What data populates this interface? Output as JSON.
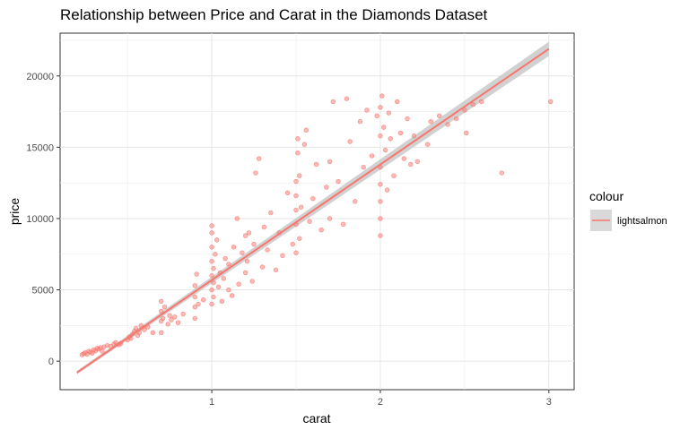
{
  "chart_data": {
    "type": "scatter",
    "title": "Relationship between Price and Carat in the Diamonds Dataset",
    "xlabel": "carat",
    "ylabel": "price",
    "xlim": [
      0.1,
      3.15
    ],
    "ylim": [
      -2000,
      23000
    ],
    "x_ticks": [
      1,
      2,
      3
    ],
    "x_tick_labels": [
      "1",
      "2",
      "3"
    ],
    "y_ticks": [
      0,
      5000,
      10000,
      15000,
      20000
    ],
    "y_tick_labels": [
      "0",
      "5000",
      "10000",
      "15000",
      "20000"
    ],
    "grid": true,
    "legend": {
      "title": "colour",
      "position": "right",
      "entries": [
        {
          "label": "lightsalmon",
          "color": "#f8766d"
        }
      ]
    },
    "point_color": "#f8766d",
    "band_color": "#cccccc",
    "fit": {
      "method": "linear",
      "x": [
        0.2,
        3.0
      ],
      "y": [
        -800,
        21900
      ],
      "band_halfwidth": [
        120,
        500
      ]
    },
    "points": [
      [
        0.23,
        450
      ],
      [
        0.24,
        520
      ],
      [
        0.25,
        600
      ],
      [
        0.26,
        480
      ],
      [
        0.27,
        700
      ],
      [
        0.28,
        650
      ],
      [
        0.29,
        560
      ],
      [
        0.3,
        800
      ],
      [
        0.31,
        720
      ],
      [
        0.32,
        900
      ],
      [
        0.33,
        850
      ],
      [
        0.34,
        950
      ],
      [
        0.35,
        700
      ],
      [
        0.36,
        1000
      ],
      [
        0.38,
        1100
      ],
      [
        0.4,
        1050
      ],
      [
        0.42,
        1200
      ],
      [
        0.43,
        1300
      ],
      [
        0.45,
        1150
      ],
      [
        0.46,
        1250
      ],
      [
        0.5,
        1500
      ],
      [
        0.51,
        1700
      ],
      [
        0.52,
        1600
      ],
      [
        0.53,
        1900
      ],
      [
        0.54,
        2100
      ],
      [
        0.55,
        2300
      ],
      [
        0.56,
        1800
      ],
      [
        0.57,
        2000
      ],
      [
        0.58,
        2500
      ],
      [
        0.6,
        2200
      ],
      [
        0.62,
        2400
      ],
      [
        0.65,
        2000
      ],
      [
        0.7,
        2800
      ],
      [
        0.7,
        3500
      ],
      [
        0.7,
        4200
      ],
      [
        0.7,
        2000
      ],
      [
        0.71,
        3000
      ],
      [
        0.72,
        3800
      ],
      [
        0.74,
        2600
      ],
      [
        0.75,
        3200
      ],
      [
        0.76,
        2900
      ],
      [
        0.78,
        3100
      ],
      [
        0.8,
        2700
      ],
      [
        0.83,
        3300
      ],
      [
        0.9,
        3000
      ],
      [
        0.9,
        3800
      ],
      [
        0.9,
        4500
      ],
      [
        0.9,
        5300
      ],
      [
        0.91,
        6100
      ],
      [
        0.92,
        4000
      ],
      [
        0.95,
        4300
      ],
      [
        1.0,
        4000
      ],
      [
        1.0,
        5000
      ],
      [
        1.0,
        6000
      ],
      [
        1.0,
        7000
      ],
      [
        1.0,
        8000
      ],
      [
        1.0,
        9000
      ],
      [
        1.0,
        9500
      ],
      [
        1.01,
        4500
      ],
      [
        1.01,
        5500
      ],
      [
        1.01,
        6500
      ],
      [
        1.02,
        7500
      ],
      [
        1.03,
        8500
      ],
      [
        1.04,
        5200
      ],
      [
        1.05,
        6200
      ],
      [
        1.06,
        4200
      ],
      [
        1.07,
        5800
      ],
      [
        1.08,
        7200
      ],
      [
        1.1,
        5000
      ],
      [
        1.1,
        6800
      ],
      [
        1.12,
        4600
      ],
      [
        1.13,
        8000
      ],
      [
        1.15,
        10000
      ],
      [
        1.16,
        5400
      ],
      [
        1.18,
        7600
      ],
      [
        1.2,
        6200
      ],
      [
        1.2,
        8800
      ],
      [
        1.21,
        7000
      ],
      [
        1.22,
        9000
      ],
      [
        1.24,
        5600
      ],
      [
        1.25,
        8200
      ],
      [
        1.26,
        13200
      ],
      [
        1.28,
        14200
      ],
      [
        1.3,
        6600
      ],
      [
        1.31,
        9400
      ],
      [
        1.33,
        7800
      ],
      [
        1.35,
        10400
      ],
      [
        1.38,
        6400
      ],
      [
        1.4,
        9000
      ],
      [
        1.42,
        7400
      ],
      [
        1.45,
        11800
      ],
      [
        1.48,
        8200
      ],
      [
        1.5,
        7600
      ],
      [
        1.5,
        9600
      ],
      [
        1.5,
        10600
      ],
      [
        1.5,
        11600
      ],
      [
        1.5,
        12600
      ],
      [
        1.51,
        14600
      ],
      [
        1.51,
        15600
      ],
      [
        1.52,
        8600
      ],
      [
        1.52,
        13000
      ],
      [
        1.53,
        10800
      ],
      [
        1.55,
        15200
      ],
      [
        1.56,
        16200
      ],
      [
        1.58,
        9800
      ],
      [
        1.6,
        11400
      ],
      [
        1.62,
        13800
      ],
      [
        1.65,
        9200
      ],
      [
        1.68,
        12200
      ],
      [
        1.7,
        10000
      ],
      [
        1.7,
        14000
      ],
      [
        1.72,
        18200
      ],
      [
        1.75,
        12600
      ],
      [
        1.78,
        9600
      ],
      [
        1.8,
        18400
      ],
      [
        1.82,
        15400
      ],
      [
        1.85,
        11200
      ],
      [
        1.88,
        16800
      ],
      [
        1.9,
        13600
      ],
      [
        1.92,
        17600
      ],
      [
        1.95,
        14400
      ],
      [
        1.98,
        17200
      ],
      [
        2.0,
        8800
      ],
      [
        2.0,
        10000
      ],
      [
        2.0,
        11200
      ],
      [
        2.0,
        12400
      ],
      [
        2.0,
        13600
      ],
      [
        2.0,
        15800
      ],
      [
        2.0,
        17800
      ],
      [
        2.01,
        18600
      ],
      [
        2.02,
        16400
      ],
      [
        2.03,
        14800
      ],
      [
        2.04,
        12000
      ],
      [
        2.05,
        17400
      ],
      [
        2.06,
        15600
      ],
      [
        2.08,
        13000
      ],
      [
        2.1,
        18200
      ],
      [
        2.12,
        16000
      ],
      [
        2.14,
        14200
      ],
      [
        2.16,
        17000
      ],
      [
        2.18,
        13800
      ],
      [
        2.2,
        15800
      ],
      [
        2.22,
        14000
      ],
      [
        2.28,
        15200
      ],
      [
        2.3,
        16800
      ],
      [
        2.35,
        17200
      ],
      [
        2.4,
        16600
      ],
      [
        2.45,
        17000
      ],
      [
        2.5,
        17600
      ],
      [
        2.51,
        16000
      ],
      [
        2.55,
        18000
      ],
      [
        2.6,
        18200
      ],
      [
        2.72,
        13200
      ],
      [
        3.01,
        18200
      ]
    ]
  }
}
